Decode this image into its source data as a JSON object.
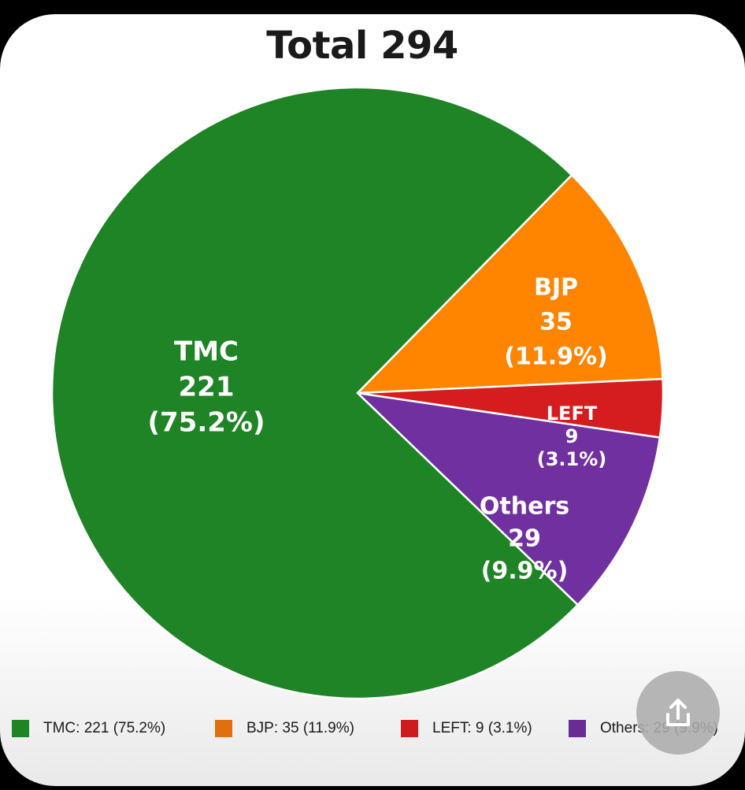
{
  "chart_data": {
    "type": "pie",
    "title": "Total 294",
    "slices": [
      {
        "label": "TMC",
        "value": 221,
        "percent": "75.2%",
        "color": "#1e8426",
        "legend": "TMC: 221 (75.2%)",
        "legend_color": "#1e8426"
      },
      {
        "label": "BJP",
        "value": 35,
        "percent": "11.9%",
        "color": "#ff8500",
        "legend": "BJP: 35 (11.9%)",
        "legend_color": "#e06f0e"
      },
      {
        "label": "LEFT",
        "value": 9,
        "percent": "3.1%",
        "color": "#d51d1f",
        "legend": "LEFT: 9 (3.1%)",
        "legend_color": "#cc1c1c"
      },
      {
        "label": "Others",
        "value": 29,
        "percent": "9.9%",
        "color": "#7130a0",
        "legend": "Others: 29 (9.9%)",
        "legend_color": "#6a2c94"
      }
    ],
    "legend_position": "bottom"
  },
  "share_button": {
    "icon": "share-upload-icon"
  }
}
